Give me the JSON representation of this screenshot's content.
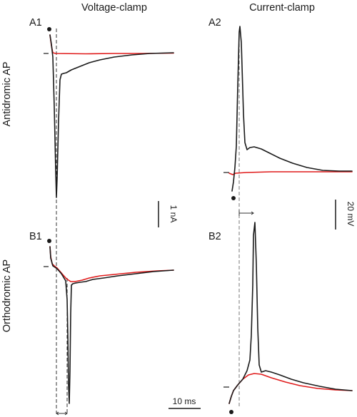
{
  "figure": {
    "columns": [
      {
        "title": "Voltage-clamp"
      },
      {
        "title": "Current-clamp"
      }
    ],
    "rows": [
      {
        "label": "Antidromic AP"
      },
      {
        "label": "Orthodromic AP"
      }
    ],
    "panels": {
      "a1": "A1",
      "a2": "A2",
      "b1": "B1",
      "b2": "B2"
    },
    "scale_bars": {
      "current": "1 nA",
      "voltage": "20 mV",
      "time": "10 ms"
    },
    "colors": {
      "trace_primary": "#1a1a1a",
      "trace_secondary": "#e01b1b",
      "guide": "#555555"
    }
  }
}
